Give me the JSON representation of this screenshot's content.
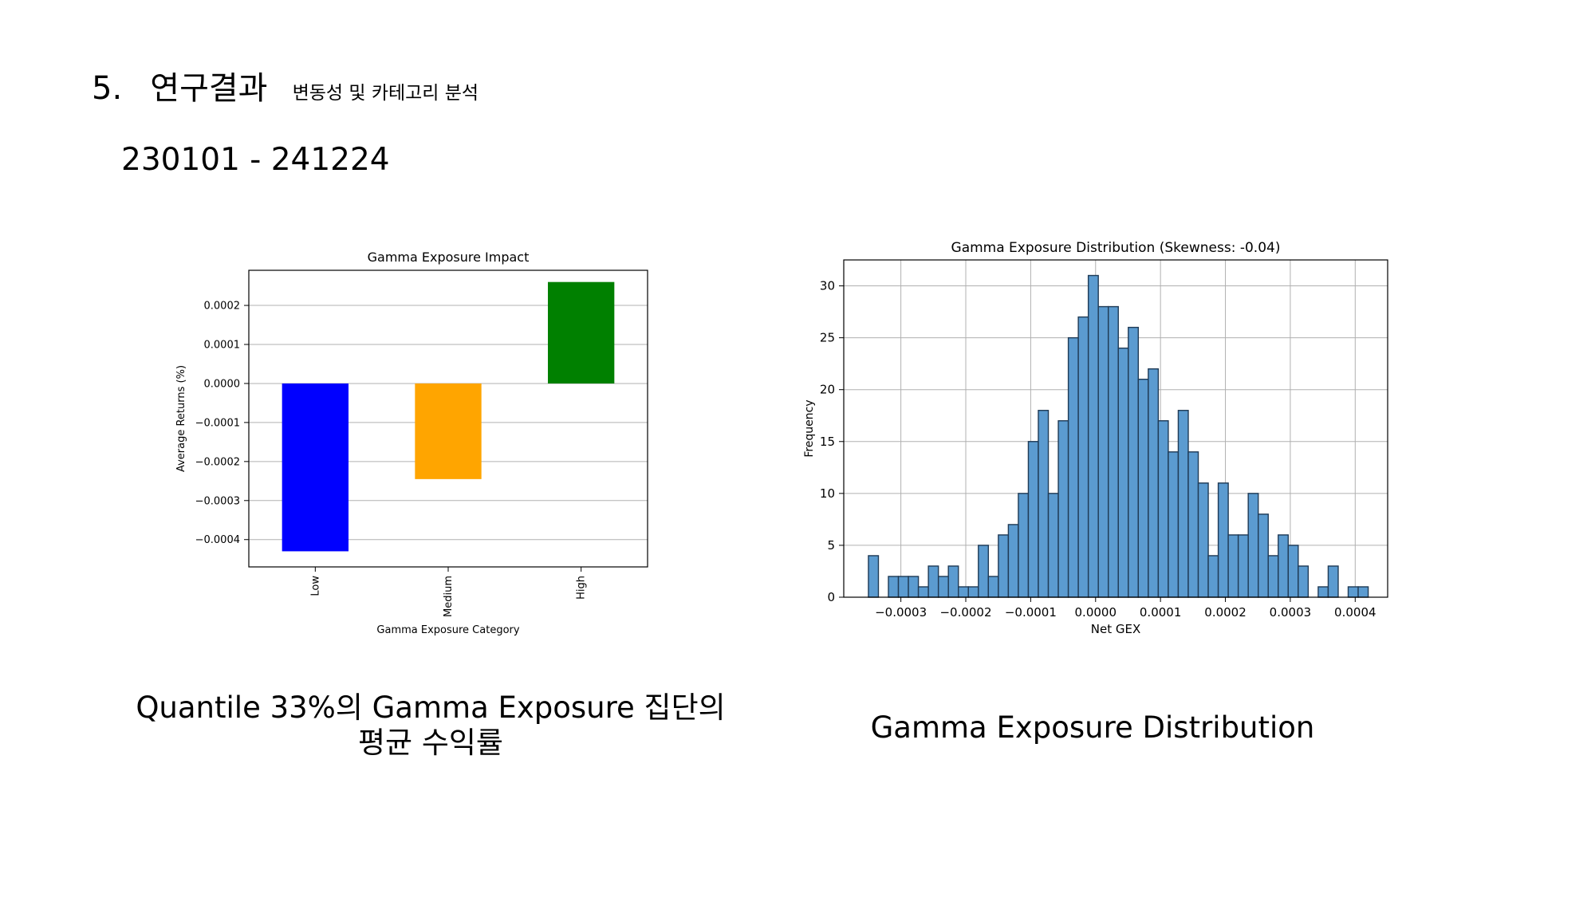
{
  "slide": {
    "heading_number": "5.",
    "heading_main": "연구결과",
    "heading_sub": "변동성 및 카테고리 분석",
    "date_range": "230101 - 241224"
  },
  "captions": {
    "left_line1": "Quantile 33%의 Gamma Exposure 집단의",
    "left_line2": "평균 수익률",
    "right": "Gamma Exposure Distribution"
  },
  "chart_data": [
    {
      "type": "bar",
      "title": "Gamma Exposure Impact",
      "xlabel": "Gamma Exposure Category",
      "ylabel": "Average Returns (%)",
      "categories": [
        "Low",
        "Medium",
        "High"
      ],
      "values": [
        -0.00043,
        -0.000245,
        0.00026
      ],
      "colors": [
        "#0000ff",
        "#ffa500",
        "#008000"
      ],
      "ylim": [
        -0.00047,
        0.00029
      ],
      "yticks": [
        0.0002,
        0.0001,
        0.0,
        -0.0001,
        -0.0002,
        -0.0003,
        -0.0004
      ],
      "ytick_labels": [
        "0.0002",
        "0.0001",
        "0.0000",
        "−0.0001",
        "−0.0002",
        "−0.0003",
        "−0.0004"
      ],
      "grid": "horizontal"
    },
    {
      "type": "histogram",
      "title": "Gamma Exposure Distribution (Skewness: -0.04)",
      "xlabel": "Net GEX",
      "ylabel": "Frequency",
      "bin_start": -0.00035,
      "bin_width": 1.54e-05,
      "counts": [
        4,
        0,
        2,
        2,
        2,
        1,
        3,
        2,
        3,
        1,
        1,
        5,
        2,
        6,
        7,
        10,
        15,
        18,
        10,
        17,
        25,
        27,
        31,
        28,
        28,
        24,
        26,
        21,
        22,
        17,
        14,
        18,
        14,
        11,
        4,
        11,
        6,
        6,
        10,
        8,
        4,
        6,
        5,
        3,
        0,
        1,
        3,
        0,
        1,
        1
      ],
      "color": "#5b9bd0",
      "edge_color": "#1f3a55",
      "xlim": [
        -0.000388,
        0.00045
      ],
      "ylim": [
        0,
        32.5
      ],
      "xticks": [
        -0.0003,
        -0.0002,
        -0.0001,
        0.0,
        0.0001,
        0.0002,
        0.0003,
        0.0004
      ],
      "xtick_labels": [
        "−0.0003",
        "−0.0002",
        "−0.0001",
        "0.0000",
        "0.0001",
        "0.0002",
        "0.0003",
        "0.0004"
      ],
      "yticks": [
        0,
        5,
        10,
        15,
        20,
        25,
        30
      ],
      "ytick_labels": [
        "0",
        "5",
        "10",
        "15",
        "20",
        "25",
        "30"
      ],
      "grid": "both"
    }
  ]
}
